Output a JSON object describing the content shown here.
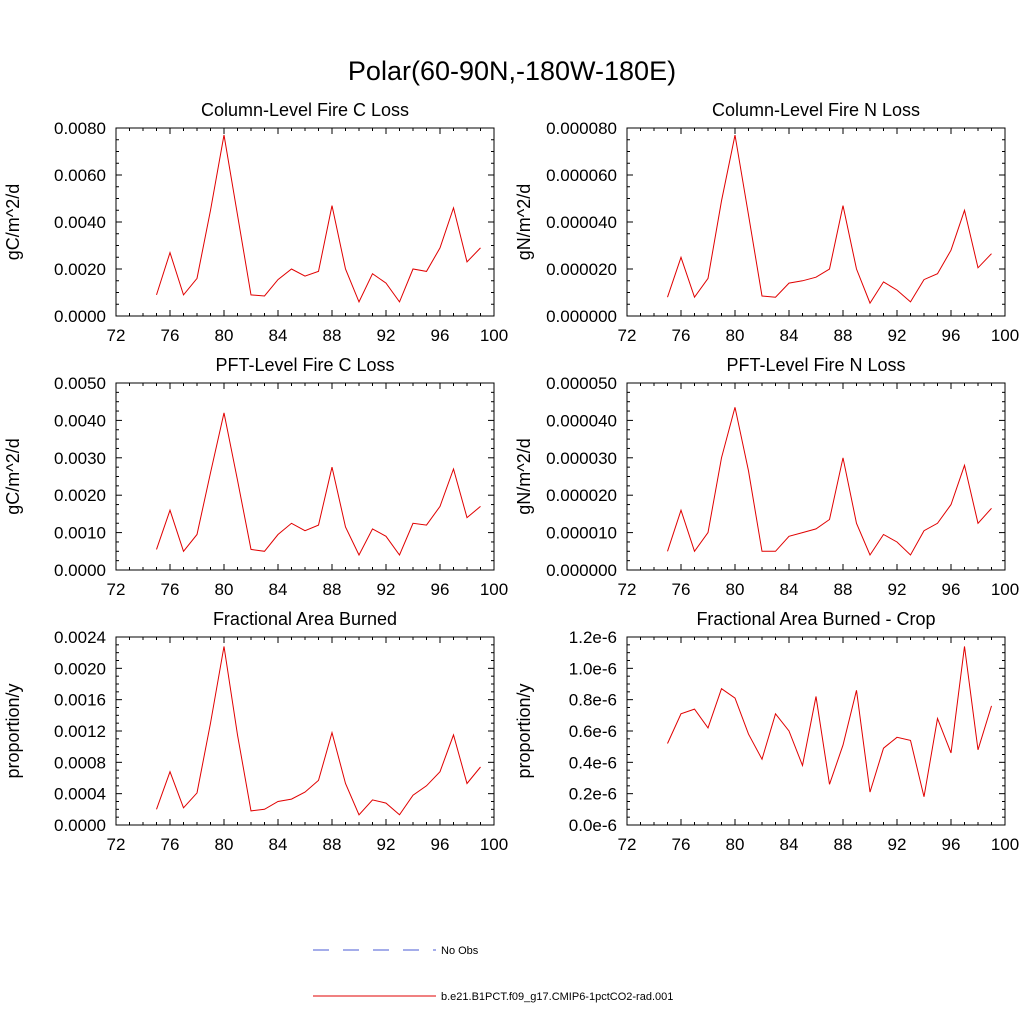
{
  "figure_title": "Polar(60-90N,-180W-180E)",
  "legend": {
    "entries": [
      {
        "label": "No Obs",
        "color": "#4a5bd4",
        "style": "dashed"
      },
      {
        "label": "b.e21.B1PCT.f09_g17.CMIP6-1pctCO2-rad.001",
        "color": "#e00000",
        "style": "solid"
      }
    ]
  },
  "chart_data": [
    {
      "type": "line",
      "title": "Column-Level Fire C Loss",
      "ylabel": "gC/m^2/d",
      "xlim": [
        72,
        100
      ],
      "ylim": [
        0,
        0.008
      ],
      "xticks": [
        "72",
        "76",
        "80",
        "84",
        "88",
        "92",
        "96",
        "100"
      ],
      "yticks": [
        "0.0000",
        "0.0020",
        "0.0040",
        "0.0060",
        "0.0080"
      ],
      "x": [
        75,
        76,
        77,
        78,
        79,
        80,
        81,
        82,
        83,
        84,
        85,
        86,
        87,
        88,
        89,
        90,
        91,
        92,
        93,
        94,
        95,
        96,
        97,
        98,
        99
      ],
      "series": [
        {
          "color": "#e00000",
          "values": [
            0.0009,
            0.0027,
            0.0009,
            0.0016,
            0.0045,
            0.0077,
            0.0043,
            0.0009,
            0.00085,
            0.00155,
            0.002,
            0.0017,
            0.0019,
            0.0047,
            0.002,
            0.0006,
            0.0018,
            0.0014,
            0.0006,
            0.002,
            0.0019,
            0.0029,
            0.0046,
            0.0023,
            0.0029
          ]
        }
      ]
    },
    {
      "type": "line",
      "title": "Column-Level Fire N Loss",
      "ylabel": "gN/m^2/d",
      "xlim": [
        72,
        100
      ],
      "ylim": [
        0,
        8e-05
      ],
      "xticks": [
        "72",
        "76",
        "80",
        "84",
        "88",
        "92",
        "96",
        "100"
      ],
      "yticks": [
        "0.000000",
        "0.000020",
        "0.000040",
        "0.000060",
        "0.000080"
      ],
      "x": [
        75,
        76,
        77,
        78,
        79,
        80,
        81,
        82,
        83,
        84,
        85,
        86,
        87,
        88,
        89,
        90,
        91,
        92,
        93,
        94,
        95,
        96,
        97,
        98,
        99
      ],
      "series": [
        {
          "color": "#e00000",
          "values": [
            8e-06,
            2.5e-05,
            8e-06,
            1.6e-05,
            4.9e-05,
            7.7e-05,
            4.3e-05,
            8.5e-06,
            8e-06,
            1.4e-05,
            1.5e-05,
            1.65e-05,
            2e-05,
            4.7e-05,
            2e-05,
            5.5e-06,
            1.45e-05,
            1.1e-05,
            6e-06,
            1.55e-05,
            1.8e-05,
            2.8e-05,
            4.5e-05,
            2.05e-05,
            2.65e-05
          ]
        }
      ]
    },
    {
      "type": "line",
      "title": "PFT-Level Fire C Loss",
      "ylabel": "gC/m^2/d",
      "xlim": [
        72,
        100
      ],
      "ylim": [
        0,
        0.005
      ],
      "xticks": [
        "72",
        "76",
        "80",
        "84",
        "88",
        "92",
        "96",
        "100"
      ],
      "yticks": [
        "0.0000",
        "0.0010",
        "0.0020",
        "0.0030",
        "0.0040",
        "0.0050"
      ],
      "x": [
        75,
        76,
        77,
        78,
        79,
        80,
        81,
        82,
        83,
        84,
        85,
        86,
        87,
        88,
        89,
        90,
        91,
        92,
        93,
        94,
        95,
        96,
        97,
        98,
        99
      ],
      "series": [
        {
          "color": "#e00000",
          "values": [
            0.00055,
            0.0016,
            0.0005,
            0.00095,
            0.0026,
            0.0042,
            0.0024,
            0.00055,
            0.0005,
            0.00095,
            0.00125,
            0.00105,
            0.0012,
            0.00275,
            0.00115,
            0.0004,
            0.0011,
            0.0009,
            0.0004,
            0.00125,
            0.0012,
            0.0017,
            0.0027,
            0.0014,
            0.0017
          ]
        }
      ]
    },
    {
      "type": "line",
      "title": "PFT-Level Fire N Loss",
      "ylabel": "gN/m^2/d",
      "xlim": [
        72,
        100
      ],
      "ylim": [
        0,
        5e-05
      ],
      "xticks": [
        "72",
        "76",
        "80",
        "84",
        "88",
        "92",
        "96",
        "100"
      ],
      "yticks": [
        "0.000000",
        "0.000010",
        "0.000020",
        "0.000030",
        "0.000040",
        "0.000050"
      ],
      "x": [
        75,
        76,
        77,
        78,
        79,
        80,
        81,
        82,
        83,
        84,
        85,
        86,
        87,
        88,
        89,
        90,
        91,
        92,
        93,
        94,
        95,
        96,
        97,
        98,
        99
      ],
      "series": [
        {
          "color": "#e00000",
          "values": [
            5e-06,
            1.6e-05,
            5e-06,
            1e-05,
            3e-05,
            4.35e-05,
            2.65e-05,
            5e-06,
            5e-06,
            9e-06,
            1e-05,
            1.1e-05,
            1.35e-05,
            3e-05,
            1.25e-05,
            4e-06,
            9.5e-06,
            7.5e-06,
            4e-06,
            1.05e-05,
            1.25e-05,
            1.75e-05,
            2.8e-05,
            1.25e-05,
            1.65e-05
          ]
        }
      ]
    },
    {
      "type": "line",
      "title": "Fractional Area Burned",
      "ylabel": "proportion/y",
      "xlim": [
        72,
        100
      ],
      "ylim": [
        0,
        0.0024
      ],
      "xticks": [
        "72",
        "76",
        "80",
        "84",
        "88",
        "92",
        "96",
        "100"
      ],
      "yticks": [
        "0.0000",
        "0.0004",
        "0.0008",
        "0.0012",
        "0.0016",
        "0.0020",
        "0.0024"
      ],
      "x": [
        75,
        76,
        77,
        78,
        79,
        80,
        81,
        82,
        83,
        84,
        85,
        86,
        87,
        88,
        89,
        90,
        91,
        92,
        93,
        94,
        95,
        96,
        97,
        98,
        99
      ],
      "series": [
        {
          "color": "#e00000",
          "values": [
            0.0002,
            0.00068,
            0.00022,
            0.00041,
            0.0013,
            0.00228,
            0.00115,
            0.00018,
            0.0002,
            0.0003,
            0.00033,
            0.00042,
            0.00057,
            0.00118,
            0.00053,
            0.00013,
            0.00032,
            0.00028,
            0.00013,
            0.00038,
            0.0005,
            0.00068,
            0.00115,
            0.00053,
            0.00074
          ]
        }
      ]
    },
    {
      "type": "line",
      "title": "Fractional Area Burned - Crop",
      "ylabel": "proportion/y",
      "xlim": [
        72,
        100
      ],
      "ylim": [
        0,
        1.2e-06
      ],
      "xticks": [
        "72",
        "76",
        "80",
        "84",
        "88",
        "92",
        "96",
        "100"
      ],
      "yticks": [
        "0.0e-6",
        "0.2e-6",
        "0.4e-6",
        "0.6e-6",
        "0.8e-6",
        "1.0e-6",
        "1.2e-6"
      ],
      "x": [
        75,
        76,
        77,
        78,
        79,
        80,
        81,
        82,
        83,
        84,
        85,
        86,
        87,
        88,
        89,
        90,
        91,
        92,
        93,
        94,
        95,
        96,
        97,
        98,
        99
      ],
      "series": [
        {
          "color": "#e00000",
          "values": [
            5.2e-07,
            7.1e-07,
            7.4e-07,
            6.2e-07,
            8.7e-07,
            8.1e-07,
            5.8e-07,
            4.2e-07,
            7.1e-07,
            6e-07,
            3.8e-07,
            8.2e-07,
            2.6e-07,
            5.1e-07,
            8.6e-07,
            2.1e-07,
            4.9e-07,
            5.6e-07,
            5.4e-07,
            1.8e-07,
            6.8e-07,
            4.6e-07,
            1.14e-06,
            4.8e-07,
            7.6e-07
          ]
        }
      ]
    }
  ]
}
